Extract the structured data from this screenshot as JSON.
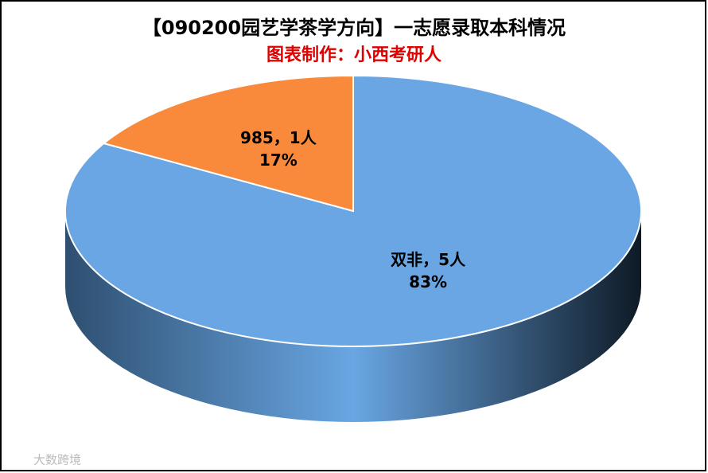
{
  "chart_data": {
    "type": "pie",
    "title": "【090200园艺学茶学方向】一志愿录取本科情况",
    "subtitle": "图表制作：小西考研人",
    "series": [
      {
        "value_label": "双非，5人",
        "value": 5,
        "percent": 83,
        "percent_label": "83%",
        "color": "#69a6e3"
      },
      {
        "value_label": "985，1人",
        "value": 1,
        "percent": 17,
        "percent_label": "17%",
        "color": "#f98a3c"
      }
    ],
    "watermark": "大数跨境"
  }
}
